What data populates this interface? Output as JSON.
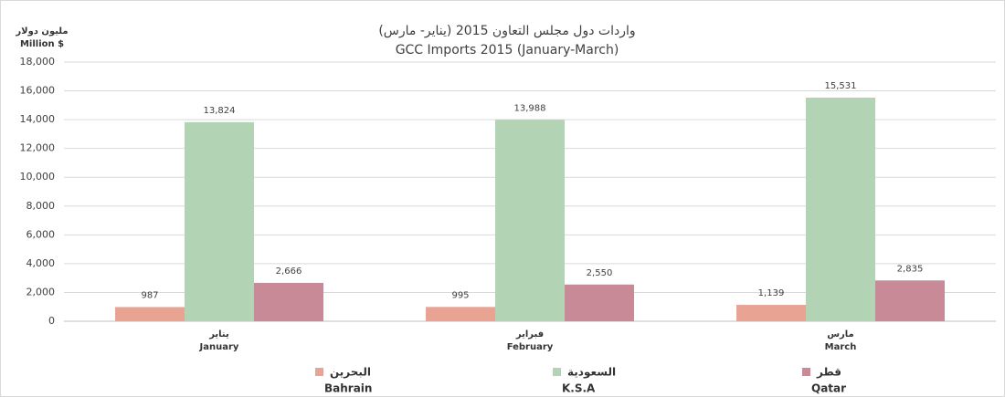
{
  "chart_data": {
    "type": "bar",
    "title_ar": "واردات دول مجلس التعاون 2015 (يناير- مارس)",
    "title": "GCC Imports 2015 (January-March)",
    "y_label_ar": "مليون دولار",
    "y_label": "Million $",
    "categories_ar": [
      "يناير",
      "فبراير",
      "مارس"
    ],
    "categories": [
      "January",
      "February",
      "March"
    ],
    "series": [
      {
        "name_ar": "البحرين",
        "name": "Bahrain",
        "color": "#e8a393",
        "values": [
          987,
          995,
          1139
        ],
        "value_labels": [
          "987",
          "995",
          "1,139"
        ]
      },
      {
        "name_ar": "السعودية",
        "name": "K.S.A",
        "color": "#b3d3b5",
        "values": [
          13824,
          13988,
          15531
        ],
        "value_labels": [
          "13,824",
          "13,988",
          "15,531"
        ]
      },
      {
        "name_ar": "قطر",
        "name": "Qatar",
        "color": "#c98a97",
        "values": [
          2666,
          2550,
          2835
        ],
        "value_labels": [
          "2,666",
          "2,550",
          "2,835"
        ]
      }
    ],
    "ylim": [
      0,
      18000
    ],
    "yticks": [
      0,
      {
        "value": 2000,
        "label": "2,000"
      },
      {
        "value": 4000,
        "label": "4,000"
      },
      {
        "value": 6000,
        "label": "6,000"
      },
      {
        "value": 8000,
        "label": "8,000"
      },
      {
        "value": 10000,
        "label": "10,000"
      },
      {
        "value": 12000,
        "label": "12,000"
      },
      {
        "value": 14000,
        "label": "14,000"
      },
      {
        "value": 16000,
        "label": "16,000"
      },
      {
        "value": 18000,
        "label": "18,000"
      }
    ],
    "grid": true,
    "legend": "bottom"
  }
}
